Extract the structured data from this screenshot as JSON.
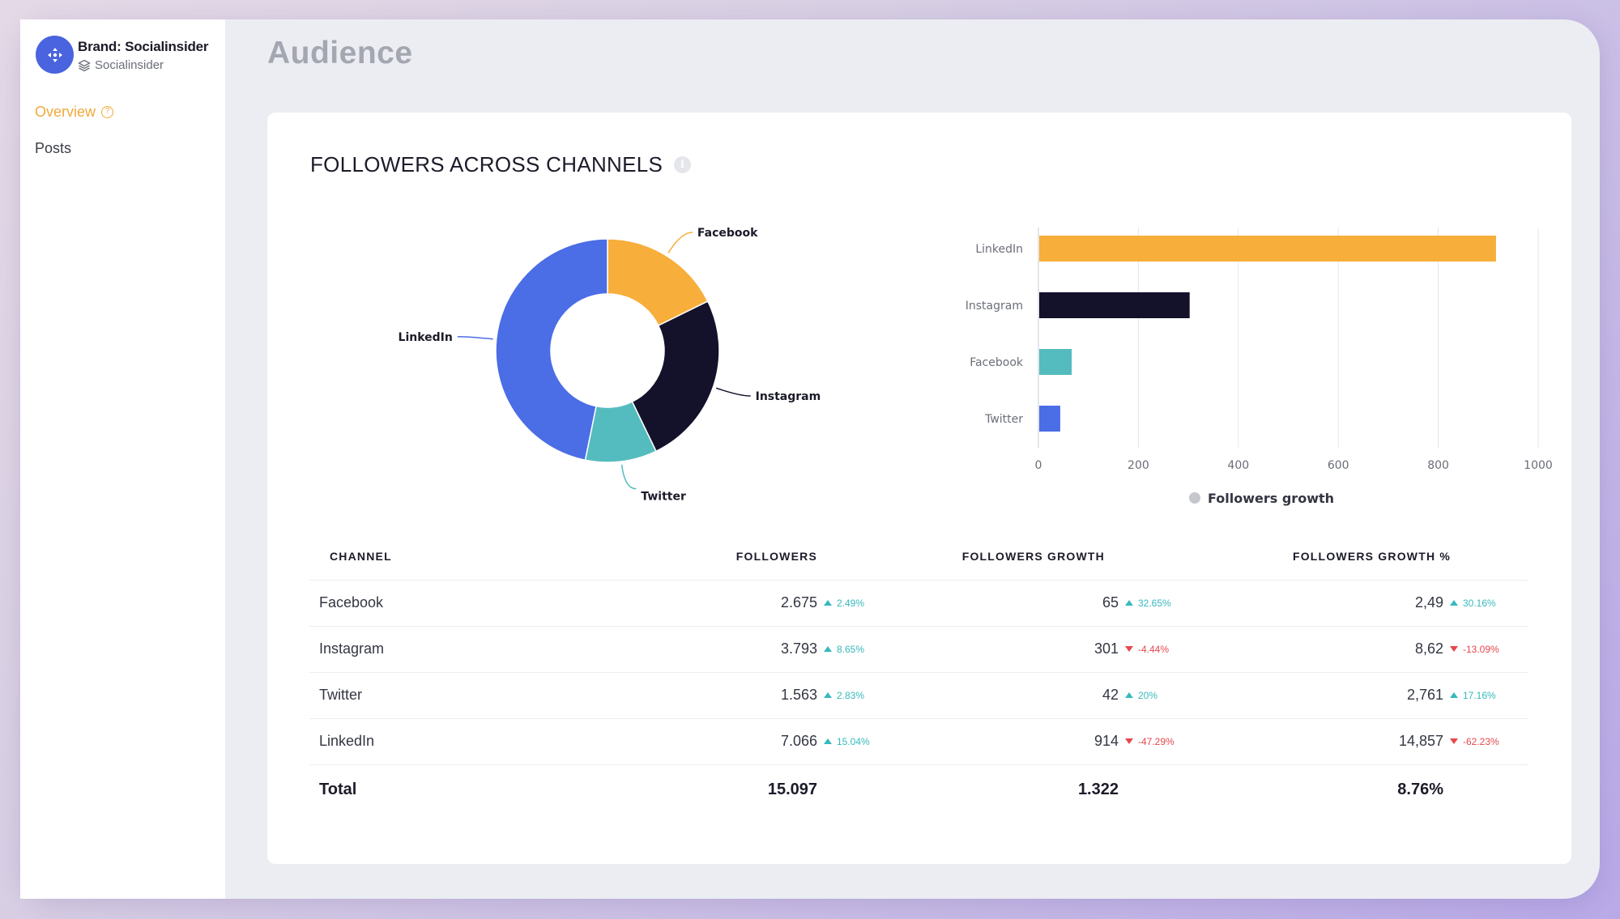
{
  "brand": {
    "name": "Brand: Socialinsider",
    "workspace": "Socialinsider",
    "logo_color": "#4a63de"
  },
  "nav": {
    "overview": "Overview",
    "posts": "Posts",
    "active_color": "#f1a939"
  },
  "page": {
    "title": "Audience"
  },
  "card": {
    "title": "FOLLOWERS ACROSS CHANNELS"
  },
  "chart_data": [
    {
      "type": "pie",
      "variant": "donut",
      "slices": [
        {
          "label": "Facebook",
          "value": 2675,
          "color": "#f7ae3b"
        },
        {
          "label": "Instagram",
          "value": 3793,
          "color": "#14112a"
        },
        {
          "label": "Twitter",
          "value": 1563,
          "color": "#54bcbe"
        },
        {
          "label": "LinkedIn",
          "value": 7066,
          "color": "#4b6de5"
        }
      ]
    },
    {
      "type": "bar",
      "orientation": "horizontal",
      "categories": [
        "LinkedIn",
        "Instagram",
        "Facebook",
        "Twitter"
      ],
      "series": [
        {
          "name": "Followers growth",
          "values": [
            914,
            301,
            65,
            42
          ],
          "colors": [
            "#f7ae3b",
            "#14112a",
            "#54bcbe",
            "#4b6de5"
          ]
        }
      ],
      "xlim": [
        0,
        1000
      ],
      "xticks": [
        "0",
        "200",
        "400",
        "600",
        "800",
        "1000"
      ],
      "grid": true,
      "legend": "bottom"
    }
  ],
  "table": {
    "headers": [
      "CHANNEL",
      "FOLLOWERS",
      "FOLLOWERS GROWTH",
      "FOLLOWERS GROWTH %"
    ],
    "rows": [
      {
        "channel": "Facebook",
        "followers": "2.675",
        "followers_chg": "2.49%",
        "followers_dir": "up",
        "growth": "65",
        "growth_chg": "32.65%",
        "growth_dir": "up",
        "growth_pct": "2,49",
        "growth_pct_chg": "30.16%",
        "growth_pct_dir": "up"
      },
      {
        "channel": "Instagram",
        "followers": "3.793",
        "followers_chg": "8.65%",
        "followers_dir": "up",
        "growth": "301",
        "growth_chg": "-4.44%",
        "growth_dir": "down",
        "growth_pct": "8,62",
        "growth_pct_chg": "-13.09%",
        "growth_pct_dir": "down"
      },
      {
        "channel": "Twitter",
        "followers": "1.563",
        "followers_chg": "2.83%",
        "followers_dir": "up",
        "growth": "42",
        "growth_chg": "20%",
        "growth_dir": "up",
        "growth_pct": "2,761",
        "growth_pct_chg": "17.16%",
        "growth_pct_dir": "up"
      },
      {
        "channel": "LinkedIn",
        "followers": "7.066",
        "followers_chg": "15.04%",
        "followers_dir": "up",
        "growth": "914",
        "growth_chg": "-47.29%",
        "growth_dir": "down",
        "growth_pct": "14,857",
        "growth_pct_chg": "-62.23%",
        "growth_pct_dir": "down"
      }
    ],
    "total": {
      "label": "Total",
      "followers": "15.097",
      "growth": "1.322",
      "growth_pct": "8.76%"
    }
  }
}
